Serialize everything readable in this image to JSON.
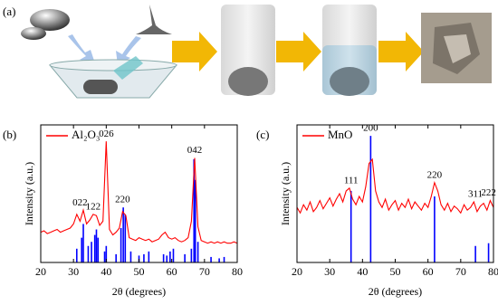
{
  "panel_label": "(a)",
  "chart_data": [
    {
      "type": "line",
      "label": "(b)",
      "xlabel": "2θ (degrees)",
      "ylabel": "Intensity (a.u.)",
      "xlim": [
        20,
        80
      ],
      "xticks": [
        20,
        30,
        40,
        50,
        60,
        70,
        80
      ],
      "ylim": [
        0,
        100
      ],
      "x": [
        20,
        21,
        22,
        23,
        24,
        25,
        26,
        27,
        28,
        29,
        30,
        31,
        32,
        33,
        34,
        35,
        36,
        37,
        38,
        39,
        40,
        41,
        42,
        43,
        44,
        45,
        46,
        47,
        48,
        49,
        50,
        51,
        52,
        53,
        54,
        55,
        56,
        57,
        58,
        59,
        60,
        61,
        62,
        63,
        64,
        65,
        66,
        67,
        68,
        69,
        70,
        71,
        72,
        73,
        74,
        75,
        76,
        77,
        78,
        79,
        80
      ],
      "series": [
        {
          "name": "Al₂O₃",
          "color": "#ff0000",
          "values": [
            22,
            23,
            21,
            22,
            23,
            24,
            22,
            23,
            24,
            25,
            28,
            35,
            30,
            38,
            28,
            31,
            35,
            34,
            27,
            30,
            88,
            24,
            20,
            22,
            25,
            37,
            34,
            18,
            17,
            16,
            18,
            17,
            16,
            17,
            15,
            16,
            17,
            20,
            22,
            18,
            17,
            18,
            16,
            15,
            16,
            18,
            30,
            76,
            26,
            16,
            15,
            14,
            15,
            14,
            15,
            14,
            15,
            14,
            14,
            15,
            14
          ]
        }
      ],
      "sticks": {
        "color": "#0000ff",
        "x": [
          31,
          32.5,
          33,
          34.5,
          35.5,
          36.5,
          37,
          37.5,
          39.5,
          40,
          43,
          44.5,
          45.2,
          45.8,
          47.5,
          50,
          51.5,
          53,
          57.5,
          58.5,
          59.5,
          60.5,
          64,
          66,
          66.8,
          67.2,
          68,
          72,
          74.5,
          76
        ],
        "values": [
          10,
          18,
          28,
          12,
          15,
          20,
          24,
          18,
          8,
          12,
          6,
          25,
          40,
          35,
          8,
          5,
          6,
          8,
          6,
          5,
          8,
          10,
          6,
          10,
          75,
          60,
          15,
          4,
          3,
          4
        ]
      },
      "annotations": [
        {
          "text": "022",
          "x": 32
        },
        {
          "text": "122",
          "x": 36
        },
        {
          "text": "026",
          "x": 40
        },
        {
          "text": "220",
          "x": 45
        },
        {
          "text": "042",
          "x": 67
        }
      ]
    },
    {
      "type": "line",
      "label": "(c)",
      "xlabel": "2θ (degrees)",
      "ylabel": "Intensity (a.u.)",
      "xlim": [
        20,
        80
      ],
      "xticks": [
        20,
        30,
        40,
        50,
        60,
        70,
        80
      ],
      "ylim": [
        0,
        100
      ],
      "x": [
        20,
        21,
        22,
        23,
        24,
        25,
        26,
        27,
        28,
        29,
        30,
        31,
        32,
        33,
        34,
        35,
        36,
        37,
        38,
        39,
        40,
        41,
        42,
        43,
        44,
        45,
        46,
        47,
        48,
        49,
        50,
        51,
        52,
        53,
        54,
        55,
        56,
        57,
        58,
        59,
        60,
        61,
        62,
        63,
        64,
        65,
        66,
        67,
        68,
        69,
        70,
        71,
        72,
        73,
        74,
        75,
        76,
        77,
        78,
        79,
        80
      ],
      "series": [
        {
          "name": "MnO",
          "color": "#ff0000",
          "values": [
            40,
            36,
            42,
            38,
            44,
            37,
            40,
            45,
            39,
            43,
            47,
            41,
            46,
            50,
            44,
            52,
            54,
            46,
            42,
            48,
            44,
            55,
            72,
            75,
            52,
            44,
            40,
            46,
            38,
            42,
            45,
            38,
            43,
            40,
            46,
            39,
            44,
            41,
            38,
            43,
            40,
            48,
            58,
            52,
            42,
            38,
            43,
            37,
            41,
            39,
            36,
            42,
            38,
            40,
            44,
            37,
            41,
            43,
            38,
            45,
            40
          ]
        }
      ],
      "sticks": {
        "color": "#0000ff",
        "x": [
          36.5,
          42.5,
          62,
          74.5,
          78.5
        ],
        "values": [
          52,
          92,
          48,
          12,
          14
        ]
      },
      "annotations": [
        {
          "text": "111",
          "x": 36.5
        },
        {
          "text": "200",
          "x": 42.5
        },
        {
          "text": "220",
          "x": 62
        },
        {
          "text": "311",
          "x": 74.5
        },
        {
          "text": "222",
          "x": 78.5
        }
      ]
    }
  ]
}
